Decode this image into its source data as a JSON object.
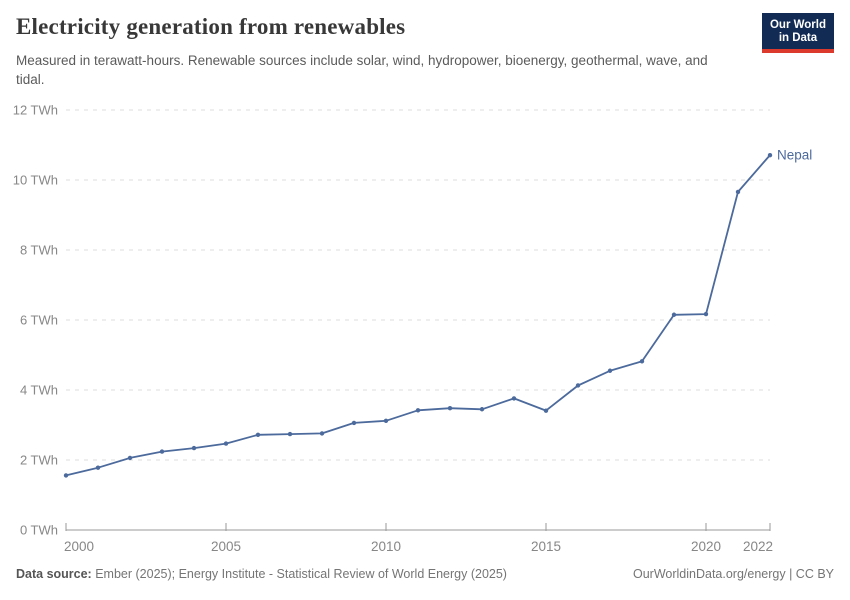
{
  "header": {
    "title": "Electricity generation from renewables",
    "subtitle": "Measured in terawatt-hours. Renewable sources include solar, wind, hydropower, bioenergy, geothermal, wave, and tidal."
  },
  "logo": {
    "line1": "Our World",
    "line2": "in Data",
    "background": "#122b54",
    "accent": "#dc3a2c"
  },
  "chart_data": {
    "type": "line",
    "title": "Electricity generation from renewables",
    "unit": "TWh",
    "x": [
      2000,
      2001,
      2002,
      2003,
      2004,
      2005,
      2006,
      2007,
      2008,
      2009,
      2010,
      2011,
      2012,
      2013,
      2014,
      2015,
      2016,
      2017,
      2018,
      2019,
      2020,
      2021,
      2022
    ],
    "series": [
      {
        "name": "Nepal",
        "color": "#4c6a9c",
        "values": [
          1.56,
          1.78,
          2.06,
          2.24,
          2.34,
          2.47,
          2.72,
          2.74,
          2.76,
          3.06,
          3.12,
          3.42,
          3.48,
          3.45,
          3.76,
          3.41,
          4.13,
          4.55,
          4.82,
          6.15,
          6.17,
          9.66,
          10.71
        ]
      }
    ],
    "ylim": [
      0,
      12
    ],
    "yticks": [
      0,
      2,
      4,
      6,
      8,
      10,
      12
    ],
    "ytick_suffix": " TWh",
    "xticks": [
      2000,
      2005,
      2010,
      2015,
      2020,
      2022
    ],
    "grid": "horizontal-dashed",
    "legend": "end-of-line-label",
    "end_label": "Nepal"
  },
  "colors": {
    "line": "#4c6a9c",
    "gridline": "#dedede",
    "axis": "#9a9a9a",
    "tick_label": "#878787"
  },
  "footer": {
    "source_label": "Data source:",
    "source_text": " Ember (2025); Energy Institute - Statistical Review of World Energy (2025)",
    "right_text": "OurWorldinData.org/energy | CC BY"
  }
}
